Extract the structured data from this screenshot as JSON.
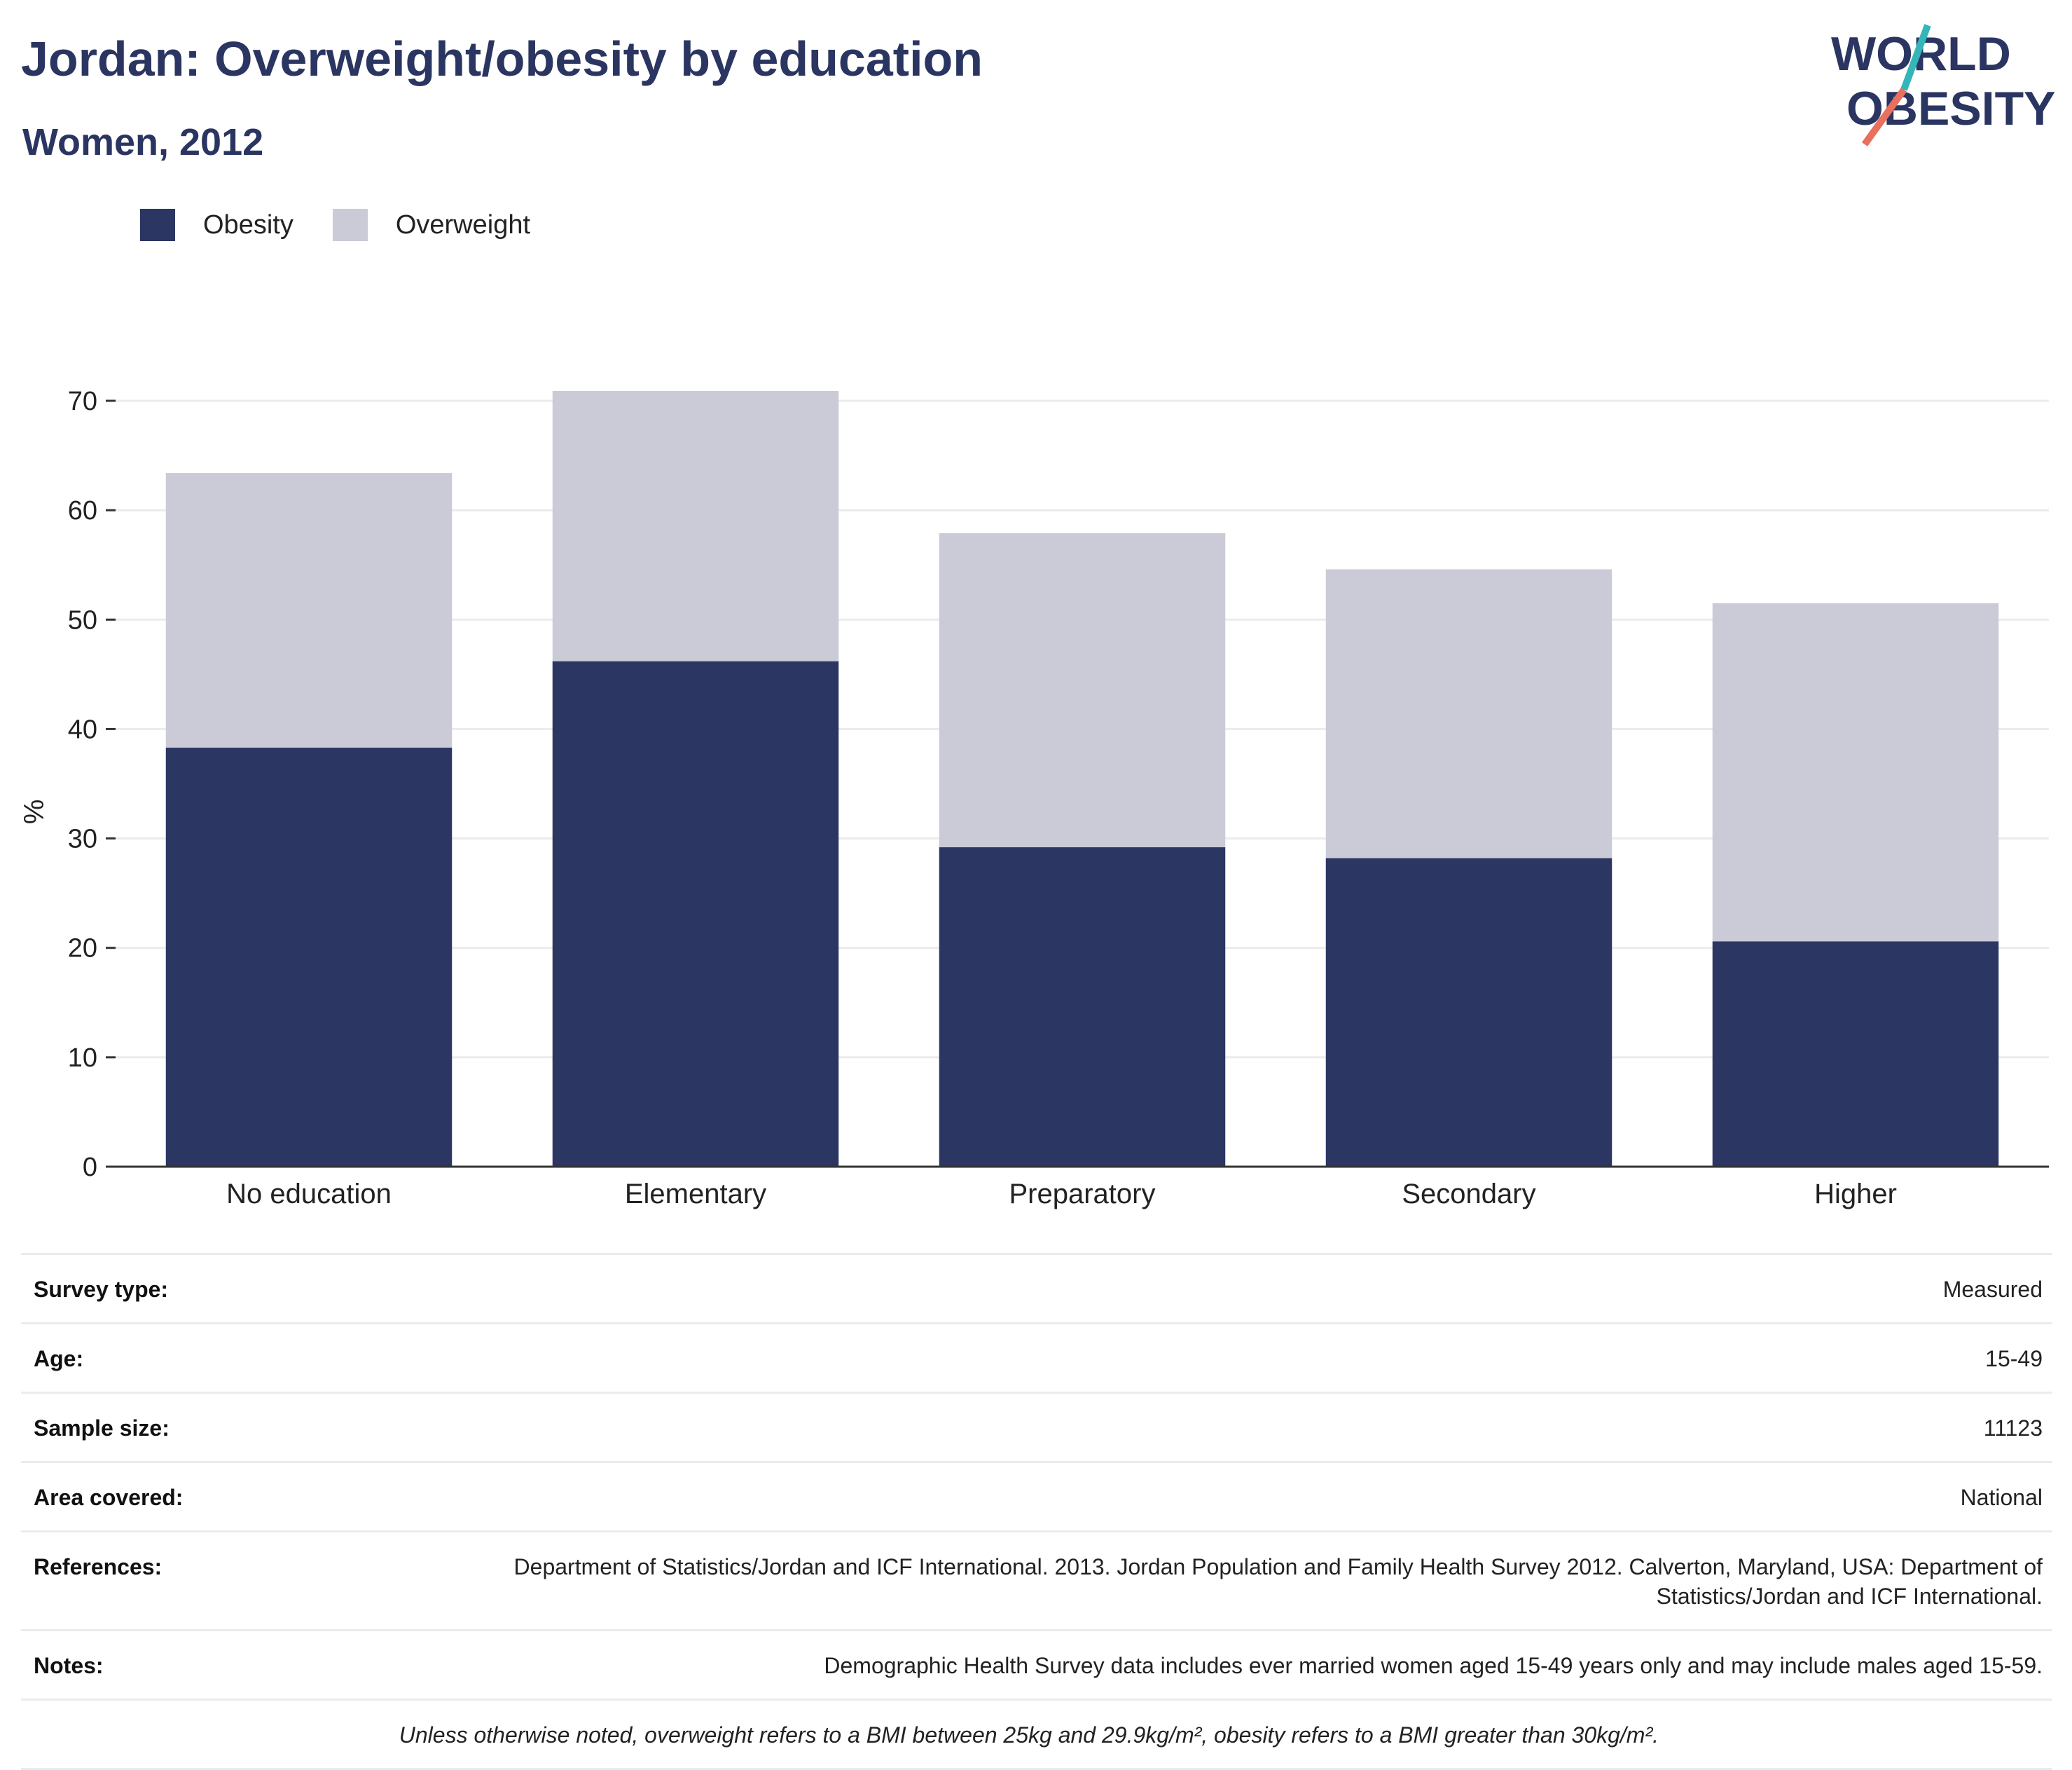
{
  "header": {
    "title": "Jordan: Overweight/obesity by education",
    "subtitle": "Women, 2012"
  },
  "logo": {
    "line1": "WORLD",
    "line2": "OBESITY"
  },
  "legend": [
    {
      "label": "Obesity",
      "color": "#2b3663"
    },
    {
      "label": "Overweight",
      "color": "#cacbd6"
    }
  ],
  "chart_data": {
    "type": "bar",
    "stacked": true,
    "categories": [
      "No education",
      "Elementary",
      "Preparatory",
      "Secondary",
      "Higher"
    ],
    "series": [
      {
        "name": "Obesity",
        "color": "#2b3663",
        "values": [
          38.3,
          46.2,
          29.2,
          28.2,
          20.6
        ]
      },
      {
        "name": "Overweight",
        "color": "#cacbd6",
        "values": [
          25.1,
          24.7,
          28.7,
          26.4,
          30.9
        ]
      }
    ],
    "totals": [
      63.4,
      70.9,
      57.9,
      54.6,
      51.5
    ],
    "ylabel": "%",
    "ylim": [
      0,
      70
    ],
    "yticks": [
      0,
      10,
      20,
      30,
      40,
      50,
      60,
      70
    ],
    "grid": true,
    "legend_position": "top-left"
  },
  "info": [
    {
      "key": "Survey type:",
      "value": "Measured"
    },
    {
      "key": "Age:",
      "value": "15-49"
    },
    {
      "key": "Sample size:",
      "value": "11123"
    },
    {
      "key": "Area covered:",
      "value": "National"
    },
    {
      "key": "References:",
      "value": "Department of Statistics/Jordan and ICF International. 2013. Jordan Population and Family Health Survey 2012. Calverton, Maryland, USA: Department of Statistics/Jordan and ICF International."
    },
    {
      "key": "Notes:",
      "value": "Demographic Health Survey data includes ever married women aged 15-49 years only and may include males aged 15-59."
    }
  ],
  "footnote": "Unless otherwise noted, overweight refers to a BMI between 25kg and 29.9kg/m², obesity refers to a BMI greater than 30kg/m²."
}
